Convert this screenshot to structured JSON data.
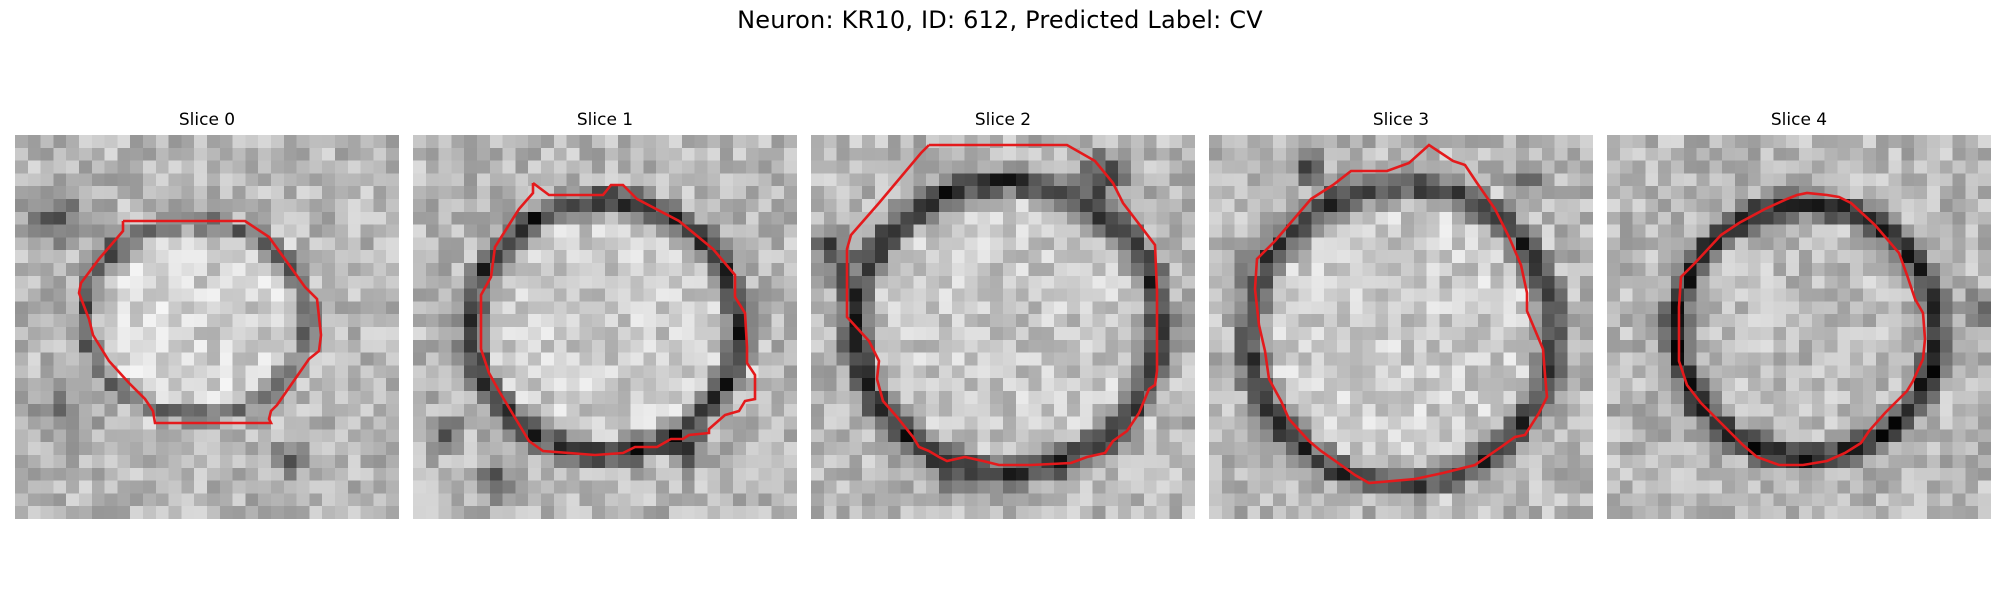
{
  "figure": {
    "title": "Neuron: KR10, ID: 612, Predicted Label: CV",
    "contour_color": "#e41a1c",
    "colormap": "gray",
    "grid_size": 30
  },
  "panels": [
    {
      "title": "Slice 0",
      "seed": 11,
      "center": [
        0.47,
        0.48
      ],
      "radius": [
        0.3,
        0.26
      ],
      "membrane_darkness": 0.55,
      "inside_brightness": 0.82
    },
    {
      "title": "Slice 1",
      "seed": 23,
      "center": [
        0.5,
        0.5
      ],
      "radius": [
        0.36,
        0.34
      ],
      "membrane_darkness": 0.75,
      "inside_brightness": 0.8
    },
    {
      "title": "Slice 2",
      "seed": 37,
      "center": [
        0.51,
        0.5
      ],
      "radius": [
        0.41,
        0.39
      ],
      "membrane_darkness": 0.72,
      "inside_brightness": 0.78
    },
    {
      "title": "Slice 3",
      "seed": 53,
      "center": [
        0.5,
        0.52
      ],
      "radius": [
        0.41,
        0.4
      ],
      "membrane_darkness": 0.7,
      "inside_brightness": 0.8
    },
    {
      "title": "Slice 4",
      "seed": 71,
      "center": [
        0.52,
        0.51
      ],
      "radius": [
        0.35,
        0.34
      ],
      "membrane_darkness": 0.78,
      "inside_brightness": 0.74
    }
  ]
}
